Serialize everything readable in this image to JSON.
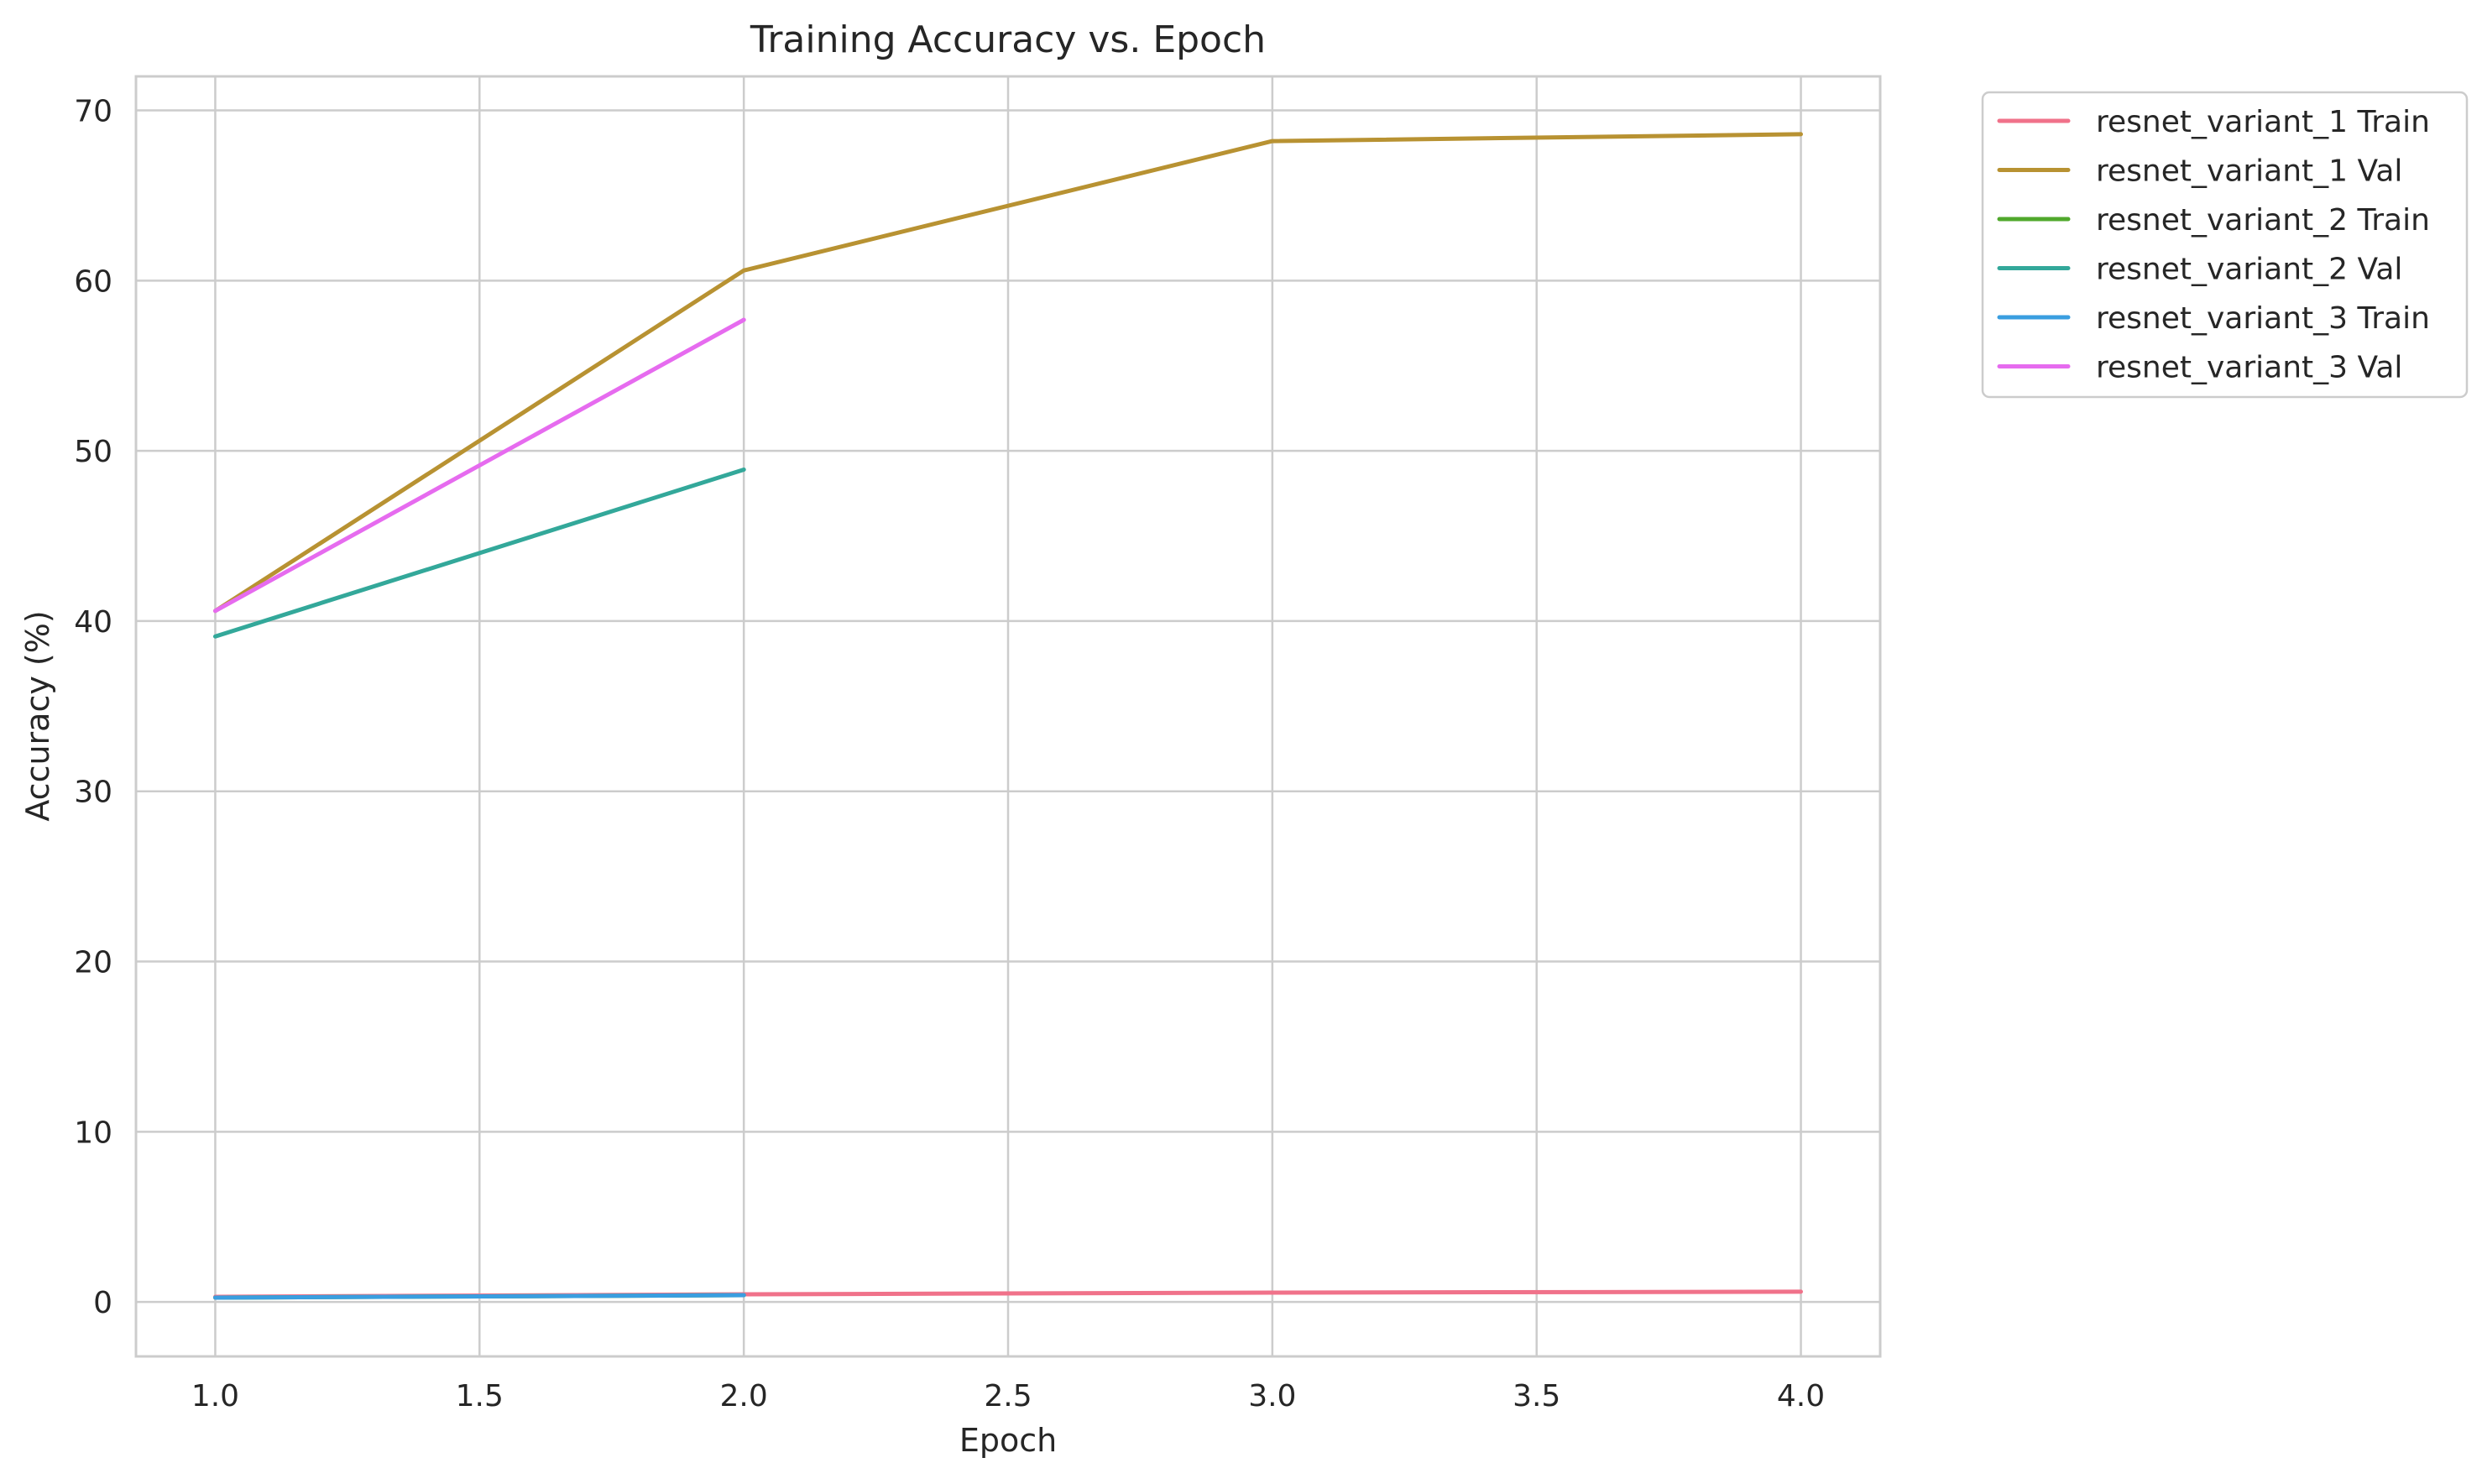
{
  "chart_data": {
    "type": "line",
    "title": "Training Accuracy vs. Epoch",
    "xlabel": "Epoch",
    "ylabel": "Accuracy (%)",
    "xlim": [
      0.85,
      4.15
    ],
    "ylim": [
      -3.2,
      72.0
    ],
    "x_ticks": [
      1.0,
      1.5,
      2.0,
      2.5,
      3.0,
      3.5,
      4.0
    ],
    "x_tick_labels": [
      "1.0",
      "1.5",
      "2.0",
      "2.5",
      "3.0",
      "3.5",
      "4.0"
    ],
    "y_ticks": [
      0,
      10,
      20,
      30,
      40,
      50,
      60,
      70
    ],
    "y_tick_labels": [
      "0",
      "10",
      "20",
      "30",
      "40",
      "50",
      "60",
      "70"
    ],
    "grid": true,
    "legend_position": "outside top-right",
    "series": [
      {
        "name": "resnet_variant_1 Train",
        "color": "#f0728a",
        "x": [
          1,
          2,
          3,
          4
        ],
        "values": [
          0.3,
          0.45,
          0.55,
          0.6
        ]
      },
      {
        "name": "resnet_variant_1 Val",
        "color": "#b89232",
        "x": [
          1,
          2,
          3,
          4
        ],
        "values": [
          40.6,
          60.6,
          68.2,
          68.6
        ]
      },
      {
        "name": "resnet_variant_2 Train",
        "color": "#50a82c",
        "x": [
          1,
          2
        ],
        "values": [
          0.25,
          0.4
        ]
      },
      {
        "name": "resnet_variant_2 Val",
        "color": "#33a89a",
        "x": [
          1,
          2
        ],
        "values": [
          39.1,
          48.9
        ]
      },
      {
        "name": "resnet_variant_3 Train",
        "color": "#3a9ee0",
        "x": [
          1,
          2
        ],
        "values": [
          0.25,
          0.4
        ]
      },
      {
        "name": "resnet_variant_3 Val",
        "color": "#e66bef",
        "x": [
          1,
          2
        ],
        "values": [
          40.6,
          57.7
        ]
      }
    ]
  }
}
